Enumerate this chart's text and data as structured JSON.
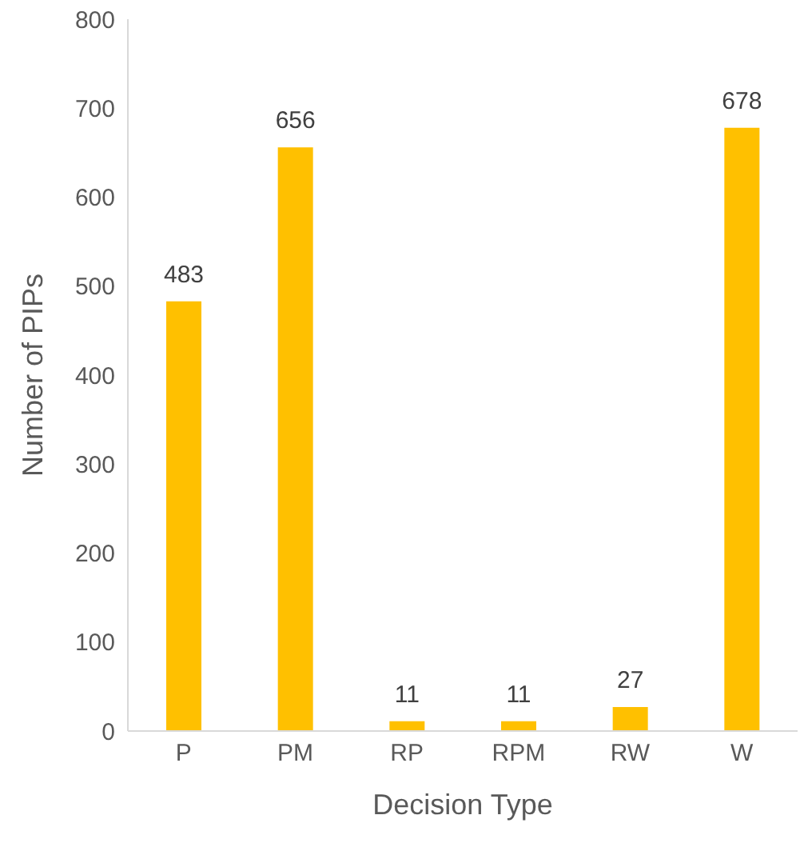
{
  "chart_data": {
    "type": "bar",
    "xlabel": "Decision Type",
    "ylabel": "Number of PIPs",
    "categories": [
      "P",
      "PM",
      "RP",
      "RPM",
      "RW",
      "W"
    ],
    "values": [
      483,
      656,
      11,
      11,
      27,
      678
    ],
    "color": "#ffc000",
    "ylim": [
      0,
      800
    ],
    "yticks": [
      0,
      100,
      200,
      300,
      400,
      500,
      600,
      700,
      800
    ],
    "grid": false,
    "data_labels": true
  }
}
